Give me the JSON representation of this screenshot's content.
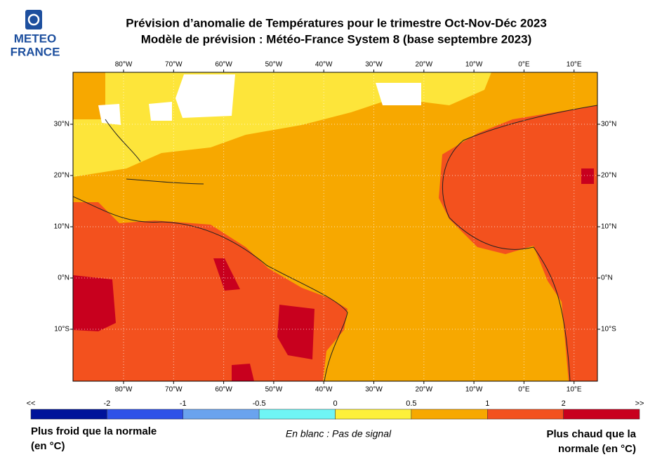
{
  "logo": {
    "line1": "METEO",
    "line2": "FRANCE"
  },
  "title": {
    "line1": "Prévision d’anomalie de Températures pour le trimestre Oct-Nov-Déc 2023",
    "line2": "Modèle de prévision : Météo-France System 8 (base septembre 2023)"
  },
  "map": {
    "lon_labels": [
      "80°W",
      "70°W",
      "60°W",
      "50°W",
      "40°W",
      "30°W",
      "20°W",
      "10°W",
      "0°E",
      "10°E"
    ],
    "lat_labels": [
      "30°N",
      "20°N",
      "10°N",
      "0°N",
      "10°S"
    ]
  },
  "colorbar": {
    "labels": [
      "<<",
      "-2",
      "-1",
      "-0.5",
      "0",
      "0.5",
      "1",
      "2",
      ">>"
    ],
    "colors": [
      "#00149a",
      "#2f52e8",
      "#6aa3ee",
      "#6ff5f5",
      "#fdf03a",
      "#f7a800",
      "#f3511e",
      "#c8001e"
    ]
  },
  "legend": {
    "left": [
      "Plus froid que la normale",
      "(en °C)"
    ],
    "center": "En blanc : Pas de signal",
    "right": [
      "Plus chaud que la",
      "normale (en °C)"
    ]
  }
}
